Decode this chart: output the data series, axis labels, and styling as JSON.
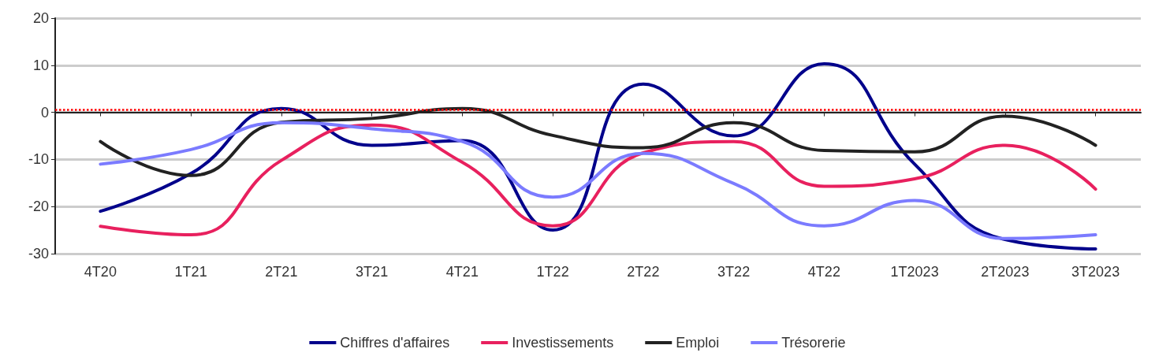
{
  "chart_data": {
    "type": "line",
    "categories": [
      "4T20",
      "1T21",
      "2T21",
      "3T21",
      "4T21",
      "1T22",
      "2T22",
      "3T22",
      "4T22",
      "1T2023",
      "2T2023",
      "3T2023"
    ],
    "series": [
      {
        "name": "Chiffres d'affaires",
        "color": "#00008b",
        "values": [
          -21,
          -13,
          0.8,
          -7,
          -6,
          -25,
          6,
          -5,
          10.3,
          -11,
          -27,
          -29
        ]
      },
      {
        "name": "Investissements",
        "color": "#e8205e",
        "values": [
          -24.2,
          -26,
          -10.2,
          -2.7,
          -10.6,
          -24.1,
          -8.6,
          -6.2,
          -15.7,
          -14.1,
          -7,
          -16.3
        ]
      },
      {
        "name": "Emploi",
        "color": "#222222",
        "values": [
          -6.2,
          -13.4,
          -2.1,
          -1.3,
          0.8,
          -4.9,
          -7.5,
          -2.2,
          -8.1,
          -8.4,
          -0.8,
          -7
        ]
      },
      {
        "name": "Trésorerie",
        "color": "#7b7bff",
        "values": [
          -11,
          -7.9,
          -2.2,
          -3.5,
          -6.2,
          -18,
          -8.7,
          -15.1,
          -24.1,
          -18.7,
          -26.8,
          -26
        ]
      }
    ],
    "ylim": [
      -30,
      20
    ],
    "yticks": [
      -30,
      -20,
      -10,
      0,
      10,
      20
    ],
    "grid": "y",
    "legend": "bottom",
    "marker": "none",
    "line_style": "solid",
    "ref_lines": [
      {
        "axis": "y",
        "value": 0.5,
        "color": "#ff0000",
        "line_style": "dotted"
      }
    ]
  }
}
